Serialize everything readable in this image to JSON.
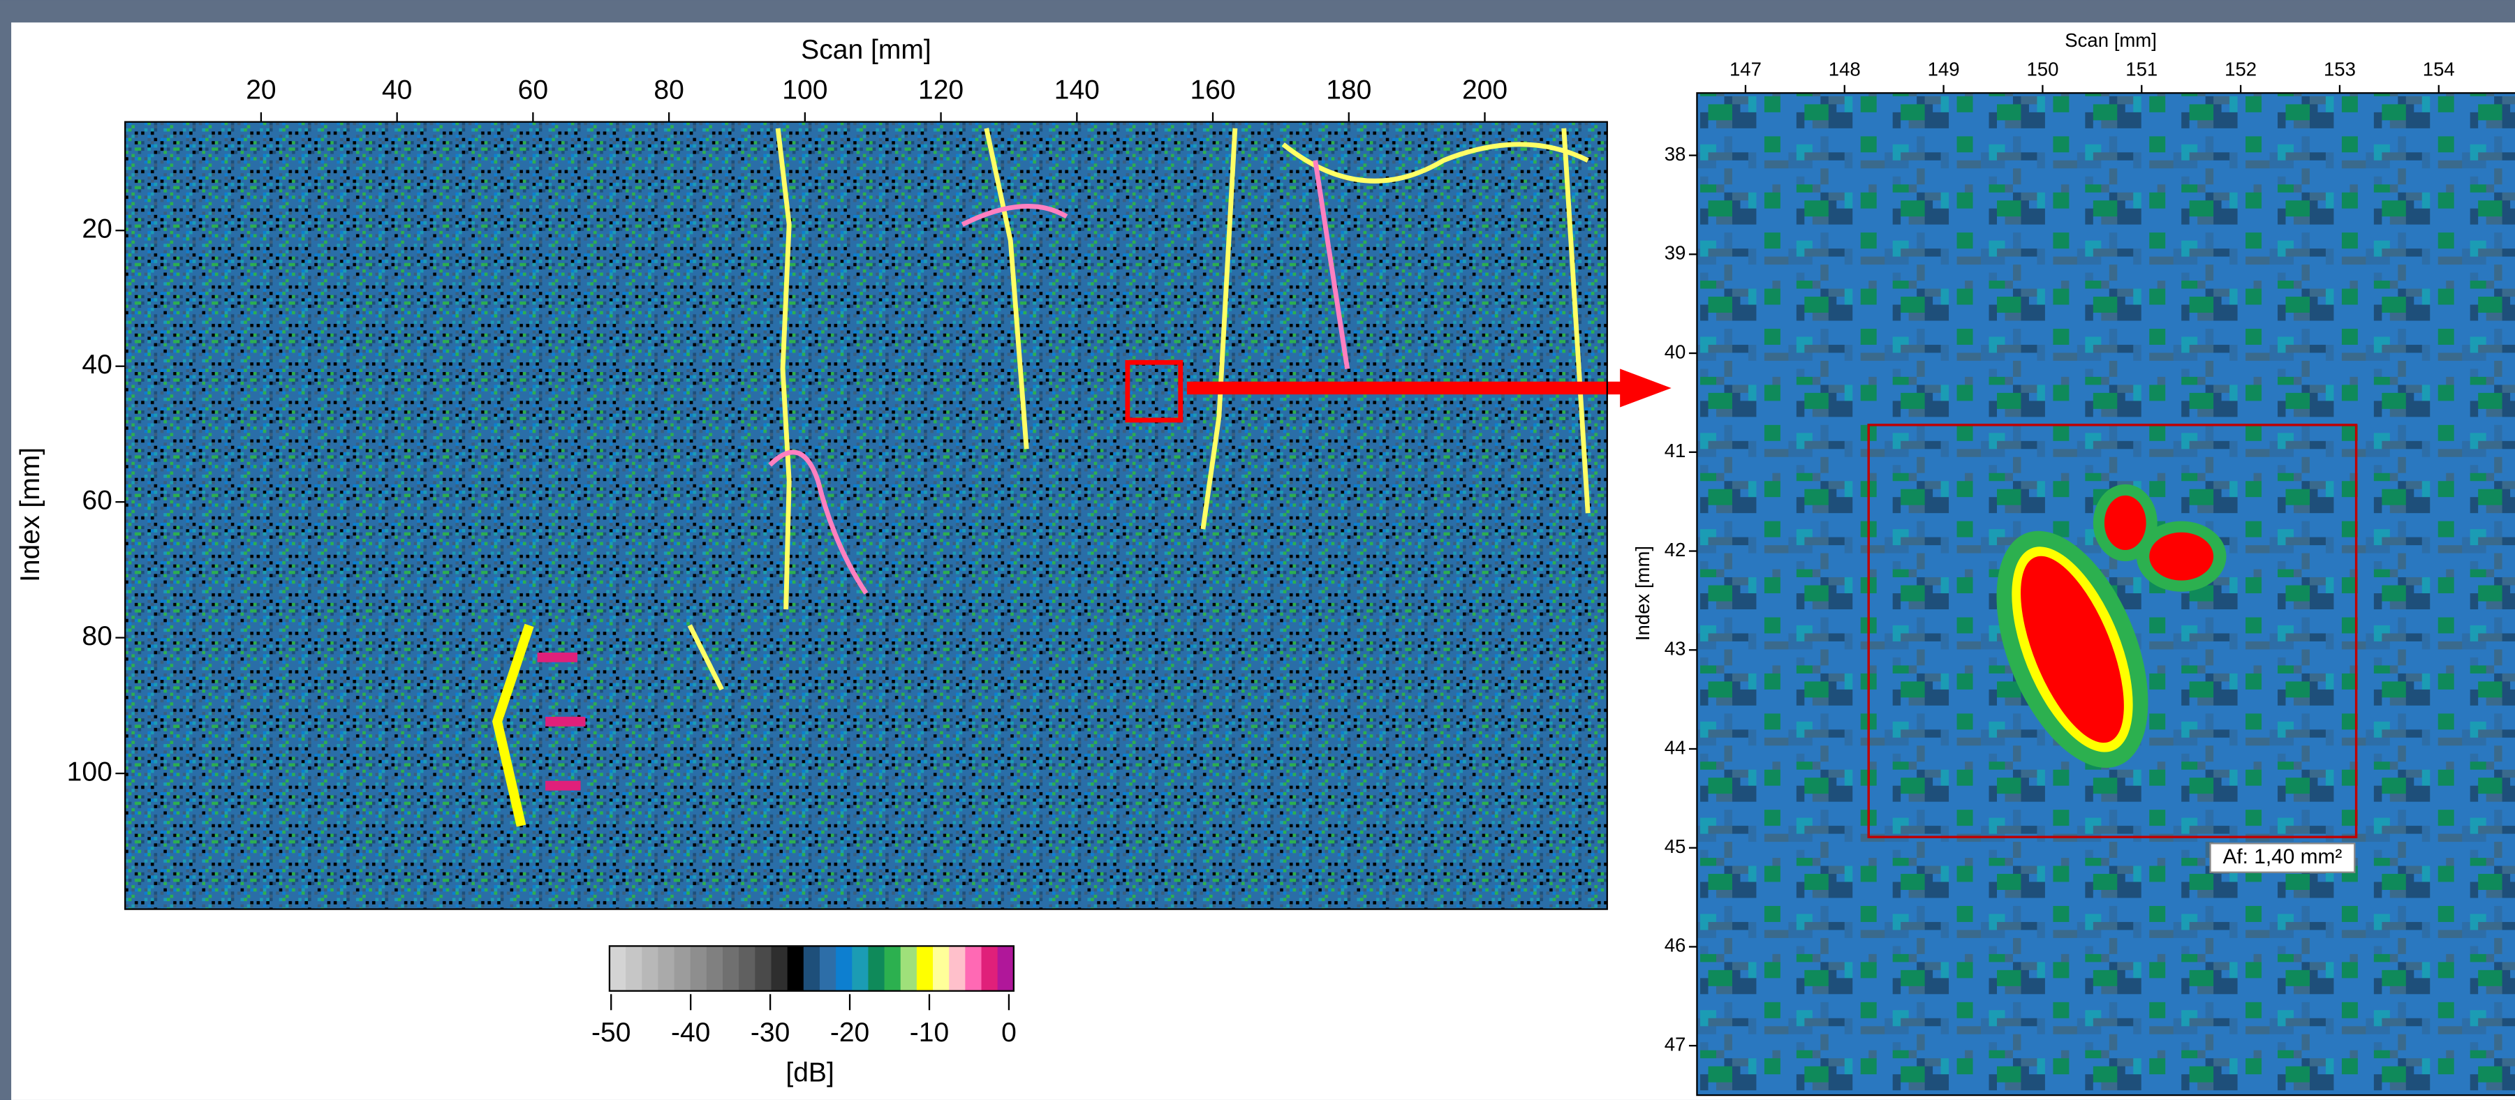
{
  "chart_data": [
    {
      "type": "heatmap",
      "xlabel": "Scan [mm]",
      "ylabel": "Index [mm]",
      "xlim": [
        0,
        218
      ],
      "xticks": [
        20,
        40,
        60,
        80,
        100,
        120,
        140,
        160,
        180,
        200
      ],
      "ylim": [
        4,
        120
      ],
      "yticks": [
        20,
        40,
        60,
        80,
        100
      ],
      "y_reversed": true,
      "colorbar": {
        "label": "[dB]",
        "clim": [
          -50,
          0
        ],
        "ticks": [
          -50,
          -40,
          -30,
          -20,
          -10,
          0
        ],
        "colors": [
          "#d4d4d4",
          "#c6c6c6",
          "#b8b8b8",
          "#aaaaaa",
          "#9c9c9c",
          "#8e8e8e",
          "#808080",
          "#707070",
          "#606060",
          "#4a4a4a",
          "#2e2e2e",
          "#000000",
          "#1e4f7a",
          "#2d6ea8",
          "#0d7fd0",
          "#1b9cb4",
          "#0f8a5a",
          "#2cb04f",
          "#9fe07a",
          "#ffff00",
          "#ffff99",
          "#ffc0cb",
          "#ff69b4",
          "#e0207a",
          "#b0179a"
        ]
      }
    },
    {
      "type": "heatmap",
      "xlabel": "Scan [mm]",
      "ylabel": "Index [mm]",
      "xlim": [
        146.51,
        154.77
      ],
      "xticks": [
        147,
        148,
        149,
        150,
        151,
        152,
        153,
        154
      ],
      "ylim": [
        37.37,
        47.5
      ],
      "yticks": [
        38,
        39,
        40,
        41,
        42,
        43,
        44,
        45,
        46,
        47
      ],
      "y_reversed": true,
      "annotation": "Af: 1,40 mm²"
    }
  ]
}
